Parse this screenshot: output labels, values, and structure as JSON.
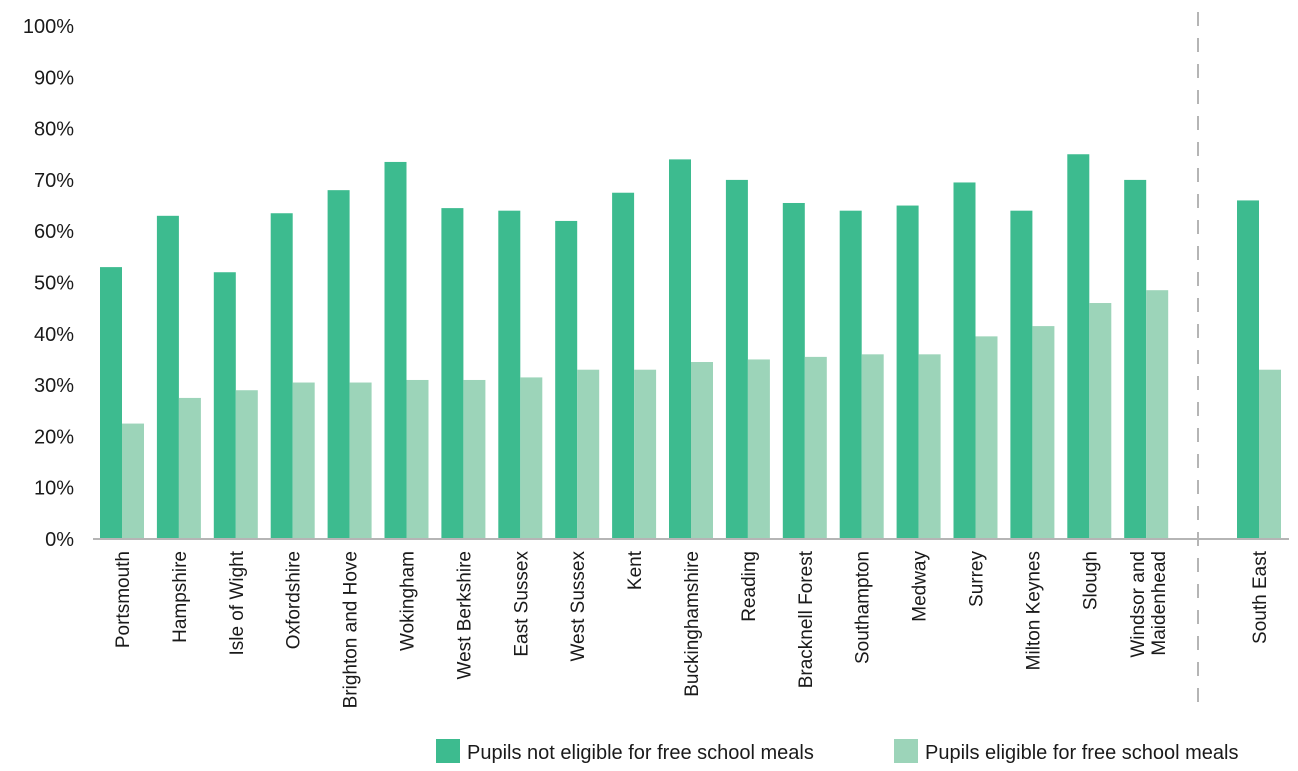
{
  "chart_data": {
    "type": "bar",
    "categories": [
      "Portsmouth",
      "Hampshire",
      "Isle of Wight",
      "Oxfordshire",
      "Brighton and Hove",
      "Wokingham",
      "West Berkshire",
      "East Sussex",
      "West Sussex",
      "Kent",
      "Buckinghamshire",
      "Reading",
      "Bracknell Forest",
      "Southampton",
      "Medway",
      "Surrey",
      "Milton Keynes",
      "Slough",
      "Windsor and Maidenhead",
      "South East"
    ],
    "series": [
      {
        "name": "Pupils not eligible for free school meals",
        "color": "#3dbb8f",
        "values": [
          53,
          63,
          52,
          63.5,
          68,
          73.5,
          64.5,
          64,
          62,
          67.5,
          74,
          70,
          65.5,
          64,
          65,
          69.5,
          64,
          75,
          70,
          66
        ]
      },
      {
        "name": "Pupils eligible for free school meals",
        "color": "#9cd4b9",
        "values": [
          22.5,
          27.5,
          29,
          30.5,
          30.5,
          31,
          31,
          31.5,
          33,
          33,
          34.5,
          35,
          35.5,
          36,
          36,
          39.5,
          41.5,
          46,
          48.5,
          33
        ]
      }
    ],
    "y_ticks": [
      "0%",
      "10%",
      "20%",
      "30%",
      "40%",
      "50%",
      "60%",
      "70%",
      "80%",
      "90%",
      "100%"
    ],
    "ylim": [
      0,
      100
    ],
    "separator_before": "South East",
    "legend_position": "bottom-right",
    "grid": false
  }
}
